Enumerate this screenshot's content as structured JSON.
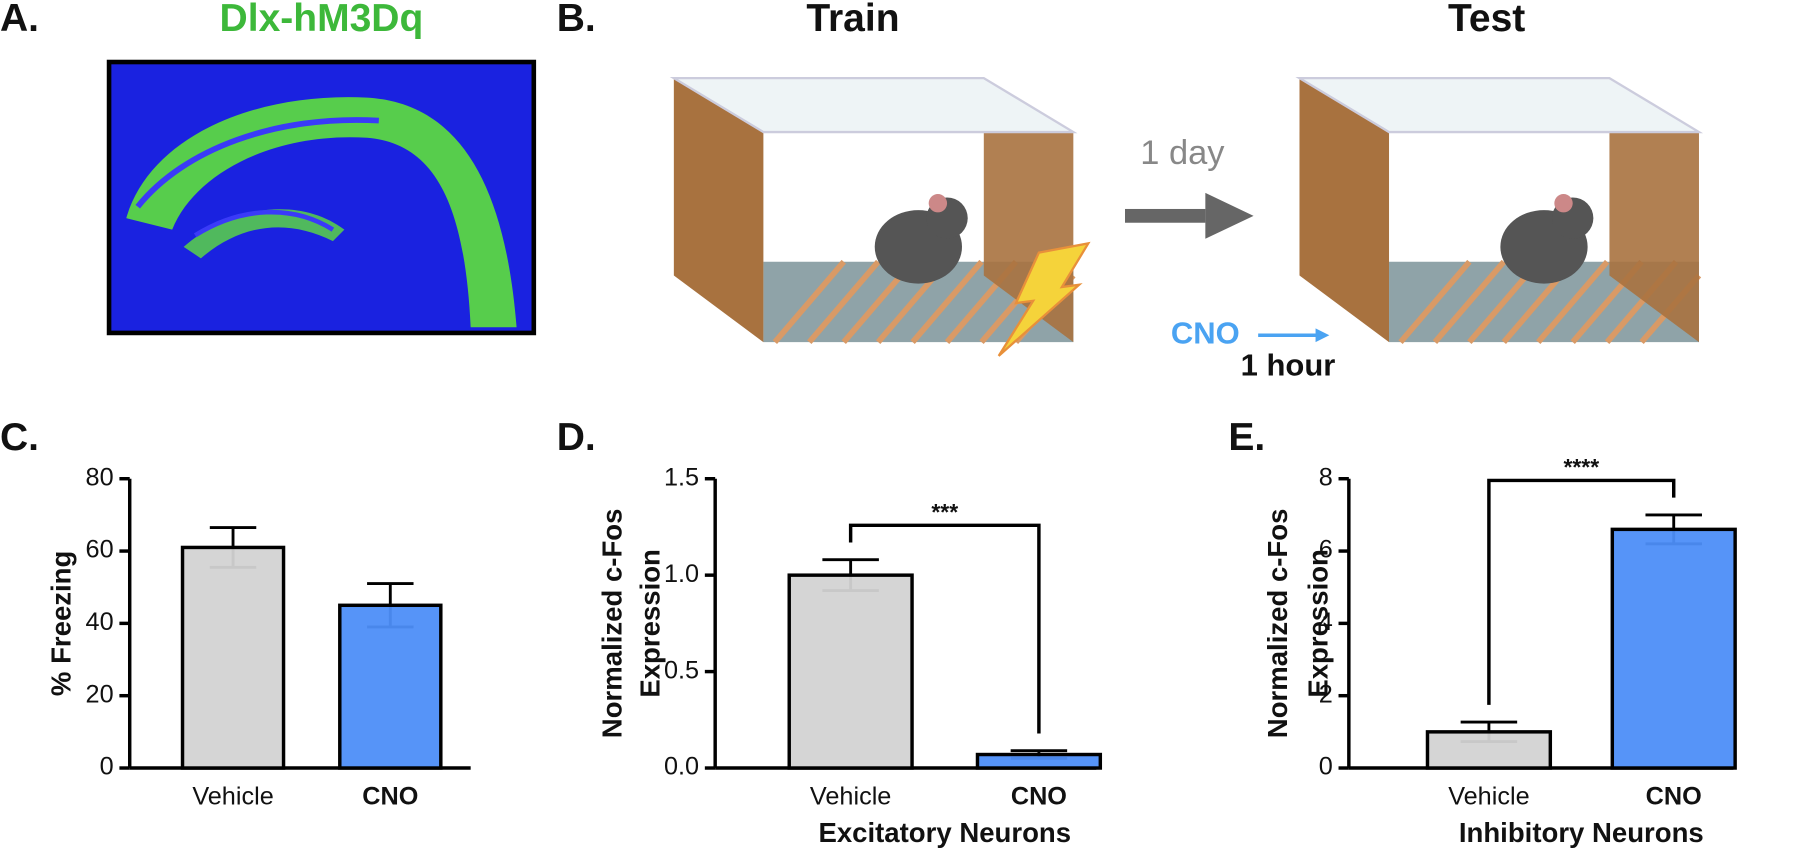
{
  "panel_a": {
    "label": "A.",
    "title": "Dlx-hM3Dq"
  },
  "panel_b": {
    "label": "B.",
    "train": "Train",
    "test": "Test",
    "interval": "1 day",
    "drug": "CNO",
    "drug_time": "1 hour"
  },
  "chart_data": [
    {
      "type": "bar",
      "label": "C.",
      "ylabel_lines": [
        "% Freezing"
      ],
      "categories": [
        "Vehicle",
        "CNO"
      ],
      "values": [
        61,
        45
      ],
      "errors": [
        5.5,
        6
      ],
      "colors": [
        "#d3d3d3",
        "#4d8ef8"
      ],
      "ylim": [
        0,
        80
      ],
      "yticks": [
        0,
        20,
        40,
        60,
        80
      ]
    },
    {
      "type": "bar",
      "label": "D.",
      "ylabel_lines": [
        "Normalized c-Fos",
        "Expression"
      ],
      "xlabel": "Excitatory Neurons",
      "categories": [
        "Vehicle",
        "CNO"
      ],
      "values": [
        1.0,
        0.07
      ],
      "errors": [
        0.08,
        0.02
      ],
      "colors": [
        "#d3d3d3",
        "#4d8ef8"
      ],
      "ylim": [
        0,
        1.5
      ],
      "yticks": [
        {
          "value": 0,
          "label": "0.0"
        },
        0.5,
        {
          "value": 1,
          "label": "1.0"
        },
        1.5
      ],
      "significance": "***"
    },
    {
      "type": "bar",
      "label": "E.",
      "ylabel_lines": [
        "Normalized c-Fos",
        "Expression"
      ],
      "xlabel": "Inhibitory Neurons",
      "categories": [
        "Vehicle",
        "CNO"
      ],
      "values": [
        1.0,
        6.6
      ],
      "errors": [
        0.27,
        0.4
      ],
      "colors": [
        "#d3d3d3",
        "#4d8ef8"
      ],
      "ylim": [
        0,
        8
      ],
      "yticks": [
        0,
        2,
        4,
        6,
        8
      ],
      "significance": "****"
    }
  ]
}
